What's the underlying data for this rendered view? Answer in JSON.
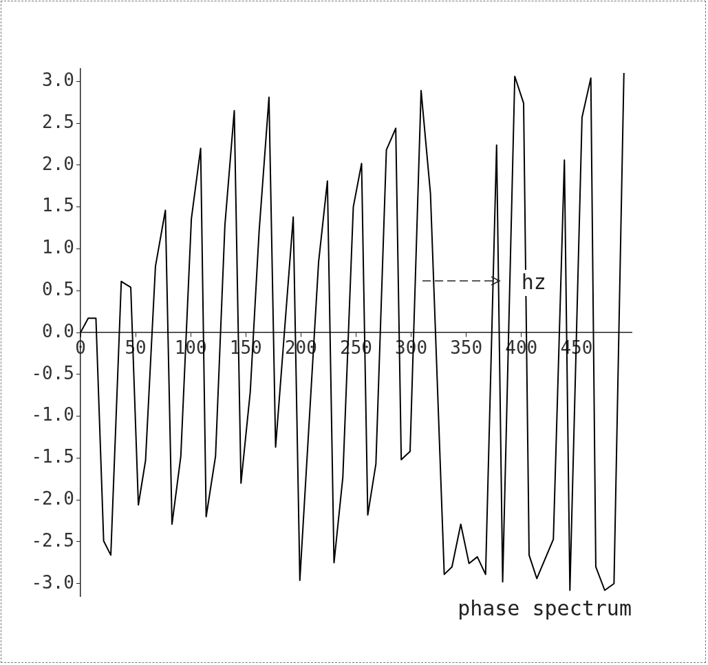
{
  "chart_data": {
    "type": "line",
    "title": "phase spectrum",
    "xlabel": "hz",
    "x": [
      0,
      7,
      14,
      21,
      27.5,
      37,
      45.6,
      52.5,
      59,
      68,
      77,
      83,
      91,
      100.6,
      109,
      114,
      122.5,
      131,
      139.5,
      145.6,
      154,
      162,
      171,
      177,
      193,
      199,
      216,
      224,
      230,
      238,
      247.5,
      255,
      260.6,
      268,
      277.5,
      286,
      291,
      299,
      309,
      317.5,
      330,
      337,
      345,
      352.5,
      360,
      367.5,
      377.5,
      383,
      394,
      402,
      407,
      414,
      429,
      439,
      444,
      455,
      463,
      467.5,
      475.6,
      484,
      493
    ],
    "series": [
      {
        "color": "#000000",
        "values": [
          0,
          0.17,
          0.17,
          -2.49,
          -2.66,
          0.61,
          0.54,
          -2.06,
          -1.53,
          0.79,
          1.46,
          -2.29,
          -1.48,
          1.36,
          2.2,
          -2.2,
          -1.48,
          1.28,
          2.65,
          -1.8,
          -0.71,
          1.2,
          2.81,
          -1.37,
          1.38,
          -2.96,
          0.84,
          1.81,
          -2.75,
          -1.73,
          1.5,
          2.02,
          -2.18,
          -1.57,
          2.18,
          2.44,
          -1.52,
          -1.42,
          2.89,
          1.66,
          -2.89,
          -2.8,
          -2.29,
          -2.76,
          -2.68,
          -2.89,
          2.24,
          -2.98,
          3.06,
          2.74,
          -2.66,
          -2.94,
          -2.47,
          2.06,
          -3.08,
          2.57,
          3.04,
          -2.8,
          -3.08,
          -3,
          3.1
        ]
      }
    ],
    "xlim": [
      0,
      500
    ],
    "xticks": [
      0,
      50,
      100,
      150,
      200,
      250,
      300,
      350,
      400,
      450
    ],
    "ylim": [
      -3.15,
      3.15
    ],
    "yticks": [
      {
        "value": -3,
        "label": "-3.0"
      },
      {
        "value": -2.5,
        "label": "-2.5"
      },
      {
        "value": -2,
        "label": "-2.0"
      },
      {
        "value": -1.5,
        "label": "-1.5"
      },
      {
        "value": -1,
        "label": "-1.0"
      },
      {
        "value": -0.5,
        "label": "-0.5"
      },
      {
        "value": 0,
        "label": "0.0"
      },
      {
        "value": 0.5,
        "label": "0.5"
      },
      {
        "value": 1,
        "label": "1.0"
      },
      {
        "value": 1.5,
        "label": "1.5"
      },
      {
        "value": 2,
        "label": "2.0"
      },
      {
        "value": 2.5,
        "label": "2.5"
      },
      {
        "value": 3,
        "label": "3.0"
      }
    ],
    "grid": false,
    "legend": false,
    "marker": "none",
    "line_style": "solid"
  }
}
